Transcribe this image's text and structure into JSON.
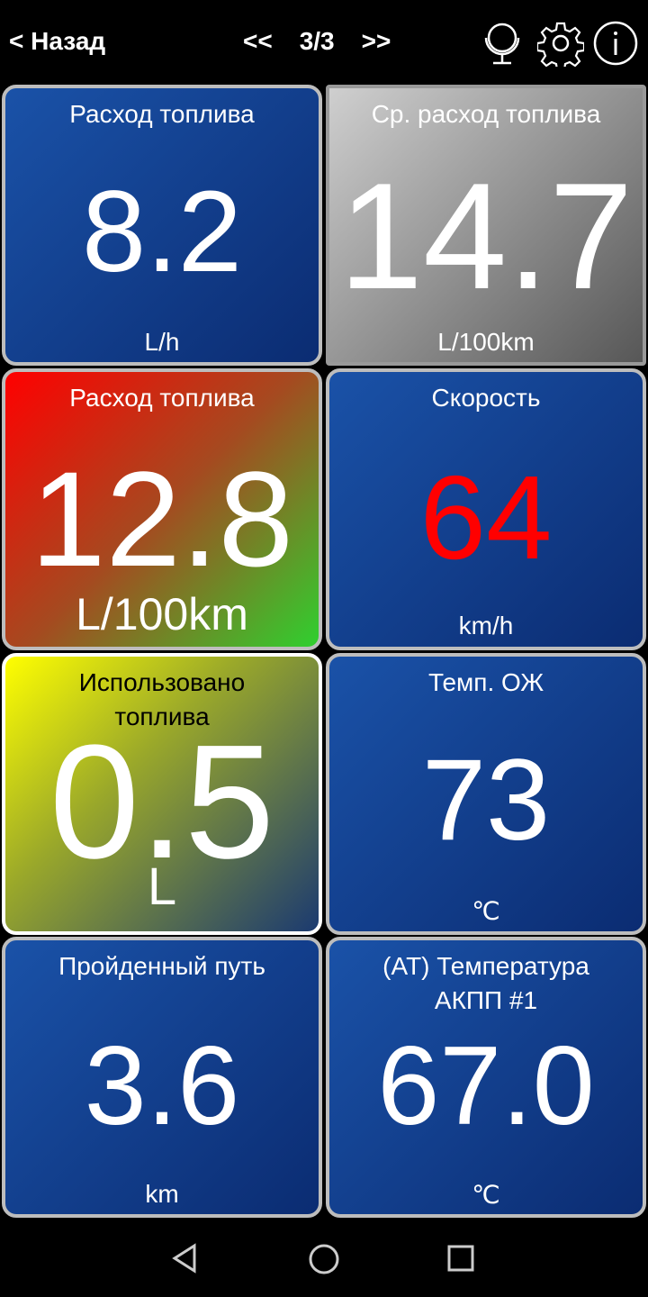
{
  "header": {
    "back_label": "< Назад",
    "prev_label": "<<",
    "page": "3/3",
    "next_label": ">>"
  },
  "tiles": [
    {
      "title": "Расход топлива",
      "value": "8.2",
      "unit": "L/h"
    },
    {
      "title": "Ср. расход топлива",
      "value": "14.7",
      "unit": "L/100km"
    },
    {
      "title": "Расход топлива",
      "value": "12.8",
      "unit": "L/100km"
    },
    {
      "title": "Скорость",
      "value": "64",
      "unit": "km/h",
      "value_color": "#ff0000"
    },
    {
      "title": "Использовано топлива",
      "value": "0.5",
      "unit": "L"
    },
    {
      "title": "Темп. ОЖ",
      "value": "73",
      "unit": "℃"
    },
    {
      "title": "Пройденный путь",
      "value": "3.6",
      "unit": "km"
    },
    {
      "title": "(AT) Температура АКПП #1",
      "value": "67.0",
      "unit": "℃"
    }
  ]
}
